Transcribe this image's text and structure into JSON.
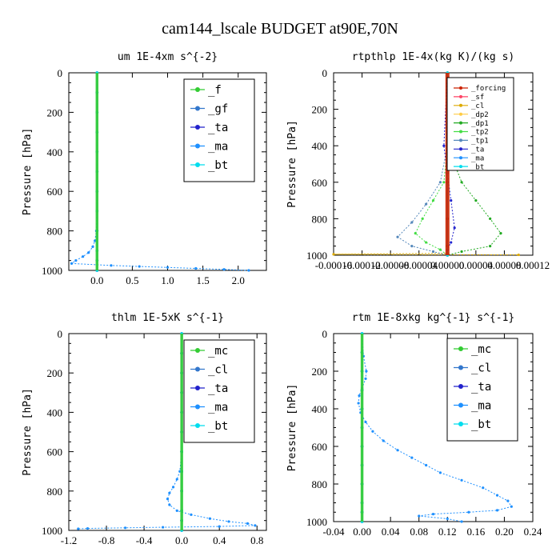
{
  "suptitle": "cam144_lscale  BUDGET at90E,70N",
  "chart_data": [
    {
      "type": "line",
      "title": "um  1E-4xm s^{-2}",
      "ylabel": "Pressure [hPa]",
      "xlim": [
        -0.4,
        2.4
      ],
      "ylim": [
        1000,
        0
      ],
      "xticks": [
        0.0,
        0.5,
        1.0,
        1.5,
        2.0
      ],
      "xtick_labels": [
        "0.0",
        "0.5",
        "1.0",
        "1.5",
        "2.0"
      ],
      "yticks": [
        0,
        200,
        400,
        600,
        800,
        1000
      ],
      "legend": "top-right",
      "series": [
        {
          "name": "_f",
          "color": "#33cc33",
          "x": [
            0,
            0,
            0,
            0,
            0,
            0,
            0,
            0,
            0,
            0,
            0,
            0
          ],
          "y": [
            0,
            100,
            200,
            300,
            400,
            500,
            600,
            700,
            800,
            900,
            950,
            1000
          ]
        },
        {
          "name": "_gf",
          "color": "#3377cc",
          "x": [
            0,
            0,
            0,
            0,
            0,
            0,
            0,
            0,
            0,
            0,
            0,
            0
          ],
          "y": [
            0,
            100,
            200,
            300,
            400,
            500,
            600,
            700,
            800,
            900,
            950,
            1000
          ]
        },
        {
          "name": "_ta",
          "color": "#2222cc",
          "x": [
            0,
            0,
            0,
            0,
            0,
            0,
            0,
            0,
            0,
            0,
            0,
            0
          ],
          "y": [
            0,
            100,
            200,
            300,
            400,
            500,
            600,
            700,
            800,
            900,
            950,
            1000
          ]
        },
        {
          "name": "_ma",
          "color": "#1e90ff",
          "x": [
            0,
            0,
            0,
            0,
            -0.01,
            -0.03,
            -0.06,
            -0.12,
            -0.2,
            -0.3,
            -0.36,
            0.2,
            0.6,
            1.0,
            1.4,
            1.8,
            2.15
          ],
          "y": [
            0,
            200,
            400,
            600,
            800,
            850,
            880,
            910,
            930,
            950,
            965,
            975,
            980,
            985,
            990,
            995,
            1000
          ]
        },
        {
          "name": "_bt",
          "color": "#00ddee",
          "x": [
            0,
            0,
            0,
            0,
            0,
            0,
            0,
            0,
            0,
            0,
            0,
            0
          ],
          "y": [
            0,
            100,
            200,
            300,
            400,
            500,
            600,
            700,
            800,
            900,
            950,
            1000
          ]
        }
      ]
    },
    {
      "type": "line",
      "title": "rtpthlp  1E-4x(kg K)/(kg s)",
      "ylabel": "Pressure [hPa]",
      "xlim": [
        -0.00016,
        0.00012
      ],
      "ylim": [
        1000,
        0
      ],
      "xticks": [
        -0.00016,
        -0.00012,
        -8e-05,
        -4e-05,
        0.0,
        4e-05,
        8e-05,
        0.00012
      ],
      "xtick_labels": [
        "-0.00016",
        "-0.00012",
        "-0.00008",
        "-0.00004",
        "0.00000",
        "0.00004",
        "0.00008",
        "0.00012"
      ],
      "yticks": [
        0,
        200,
        400,
        600,
        800,
        1000
      ],
      "legend": "top-right",
      "series": [
        {
          "name": "_forcing",
          "color": "#cc2200",
          "x": [
            0,
            0,
            0,
            0,
            0,
            0,
            0
          ],
          "y": [
            0,
            200,
            400,
            600,
            800,
            950,
            1000
          ]
        },
        {
          "name": "_sf",
          "color": "#ff4466",
          "x": [
            0,
            0,
            0
          ],
          "y": [
            0,
            500,
            1000
          ]
        },
        {
          "name": "_cl",
          "color": "#ddaa00",
          "x": [
            0,
            0,
            -0.00016,
            0.0001
          ],
          "y": [
            0,
            990,
            995,
            998
          ]
        },
        {
          "name": "_dp2",
          "color": "#ffcc44",
          "x": [
            0,
            0,
            0
          ],
          "y": [
            0,
            500,
            1000
          ]
        },
        {
          "name": "_dp1",
          "color": "#22aa22",
          "x": [
            0,
            0,
            5e-06,
            2e-05,
            4e-05,
            6e-05,
            7.5e-05,
            6e-05,
            2e-05,
            0.0
          ],
          "y": [
            0,
            300,
            450,
            600,
            700,
            800,
            880,
            950,
            980,
            1000
          ]
        },
        {
          "name": "_tp2",
          "color": "#44dd44",
          "x": [
            0,
            0,
            -5e-06,
            -2e-05,
            -3.5e-05,
            -4.5e-05,
            -3e-05,
            -1e-05,
            0.0
          ],
          "y": [
            0,
            400,
            600,
            700,
            800,
            880,
            930,
            970,
            1000
          ]
        },
        {
          "name": "_tp1",
          "color": "#5588bb",
          "x": [
            0,
            0,
            -1e-05,
            -3e-05,
            -5e-05,
            -7e-05,
            -5e-05,
            -2e-05,
            0.0
          ],
          "y": [
            0,
            400,
            600,
            720,
            820,
            900,
            950,
            980,
            1000
          ]
        },
        {
          "name": "_ta",
          "color": "#2222cc",
          "x": [
            0,
            -5e-06,
            0.0,
            5e-06,
            1e-05,
            5e-06,
            0.0,
            0.0
          ],
          "y": [
            0,
            400,
            550,
            700,
            850,
            930,
            970,
            1000
          ]
        },
        {
          "name": "_ma",
          "color": "#1e90ff",
          "x": [
            0,
            0,
            0
          ],
          "y": [
            0,
            500,
            1000
          ]
        },
        {
          "name": "_bt",
          "color": "#00ddee",
          "x": [
            0,
            0,
            0
          ],
          "y": [
            0,
            500,
            1000
          ]
        }
      ]
    },
    {
      "type": "line",
      "title": "thlm  1E-5xK s^{-1}",
      "ylabel": "Pressure [hPa]",
      "xlim": [
        -1.2,
        0.9
      ],
      "ylim": [
        1000,
        0
      ],
      "xticks": [
        -1.2,
        -0.8,
        -0.4,
        0.0,
        0.4,
        0.8
      ],
      "xtick_labels": [
        "-1.2",
        "-0.8",
        "-0.4",
        "0.0",
        "0.4",
        "0.8"
      ],
      "yticks": [
        0,
        200,
        400,
        600,
        800,
        1000
      ],
      "legend": "top-right",
      "series": [
        {
          "name": "_mc",
          "color": "#33cc33",
          "x": [
            0,
            0,
            0,
            0,
            0,
            0,
            0,
            0,
            0,
            0,
            0,
            0
          ],
          "y": [
            0,
            100,
            200,
            300,
            400,
            500,
            600,
            700,
            800,
            900,
            950,
            1000
          ]
        },
        {
          "name": "_cl",
          "color": "#3377cc",
          "x": [
            0,
            0,
            0,
            0,
            0,
            0,
            0,
            0,
            0,
            0,
            0,
            0
          ],
          "y": [
            0,
            100,
            200,
            300,
            400,
            500,
            600,
            700,
            800,
            900,
            950,
            1000
          ]
        },
        {
          "name": "_ta",
          "color": "#2222cc",
          "x": [
            0,
            0,
            0,
            0,
            0,
            0,
            0,
            0,
            0,
            0,
            0,
            0
          ],
          "y": [
            0,
            100,
            200,
            300,
            400,
            500,
            600,
            700,
            800,
            900,
            950,
            1000
          ]
        },
        {
          "name": "_ma",
          "color": "#1e90ff",
          "x": [
            0,
            0,
            0,
            0,
            -0.02,
            -0.05,
            -0.09,
            -0.13,
            -0.15,
            -0.13,
            -0.05,
            0.1,
            0.3,
            0.5,
            0.7,
            0.78,
            0.4,
            -0.2,
            -0.6,
            -1.0,
            -1.1
          ],
          "y": [
            0,
            200,
            400,
            600,
            700,
            740,
            780,
            810,
            840,
            870,
            900,
            920,
            940,
            955,
            965,
            975,
            980,
            984,
            987,
            990,
            992
          ]
        },
        {
          "name": "_bt",
          "color": "#00ddee",
          "x": [
            0,
            0,
            0,
            0,
            0,
            0,
            0,
            0,
            0,
            0,
            0,
            0
          ],
          "y": [
            0,
            100,
            200,
            300,
            400,
            500,
            600,
            700,
            800,
            900,
            950,
            1000
          ]
        }
      ]
    },
    {
      "type": "line",
      "title": "rtm  1E-8xkg kg^{-1} s^{-1}",
      "ylabel": "Pressure [hPa]",
      "xlim": [
        -0.04,
        0.24
      ],
      "ylim": [
        1000,
        0
      ],
      "xticks": [
        -0.04,
        0.0,
        0.04,
        0.08,
        0.12,
        0.16,
        0.2,
        0.24
      ],
      "xtick_labels": [
        "-0.04",
        "0.00",
        "0.04",
        "0.08",
        "0.12",
        "0.16",
        "0.20",
        "0.24"
      ],
      "yticks": [
        0,
        200,
        400,
        600,
        800,
        1000
      ],
      "legend": "top-right",
      "series": [
        {
          "name": "_mc",
          "color": "#33cc33",
          "x": [
            0,
            0,
            0,
            0,
            0,
            0,
            0,
            0,
            0,
            0,
            0,
            0
          ],
          "y": [
            0,
            100,
            200,
            300,
            400,
            500,
            600,
            700,
            800,
            900,
            950,
            1000
          ]
        },
        {
          "name": "_cl",
          "color": "#3377cc",
          "x": [
            0,
            0,
            0,
            0,
            0,
            0,
            0,
            0,
            0,
            0,
            0,
            0
          ],
          "y": [
            0,
            100,
            200,
            300,
            400,
            500,
            600,
            700,
            800,
            900,
            950,
            1000
          ]
        },
        {
          "name": "_ta",
          "color": "#2222cc",
          "x": [
            0,
            0,
            0,
            0,
            0,
            0,
            0,
            0,
            0,
            0,
            0,
            0
          ],
          "y": [
            0,
            100,
            200,
            300,
            400,
            500,
            600,
            700,
            800,
            900,
            950,
            1000
          ]
        },
        {
          "name": "_ma",
          "color": "#1e90ff",
          "x": [
            0,
            0.002,
            0.006,
            0.005,
            0.0,
            -0.004,
            -0.005,
            -0.002,
            0.005,
            0.015,
            0.03,
            0.05,
            0.07,
            0.09,
            0.11,
            0.14,
            0.17,
            0.19,
            0.205,
            0.21,
            0.19,
            0.15,
            0.1,
            0.08,
            0.12,
            0.14
          ],
          "y": [
            0,
            120,
            200,
            240,
            290,
            330,
            370,
            420,
            470,
            520,
            570,
            620,
            660,
            700,
            740,
            780,
            820,
            860,
            890,
            920,
            940,
            950,
            960,
            970,
            985,
            1000
          ]
        },
        {
          "name": "_bt",
          "color": "#00ddee",
          "x": [
            0,
            0,
            0,
            0,
            0,
            0,
            0,
            0,
            0,
            0,
            0,
            0
          ],
          "y": [
            0,
            100,
            200,
            300,
            400,
            500,
            600,
            700,
            800,
            900,
            950,
            1000
          ]
        }
      ]
    }
  ]
}
